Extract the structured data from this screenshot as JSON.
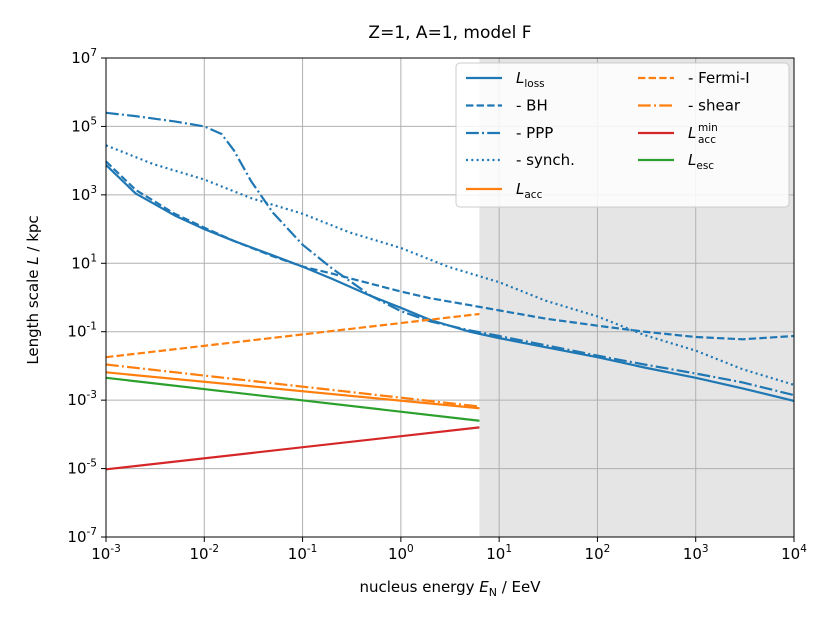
{
  "chart_data": {
    "type": "line",
    "title": "Z=1, A=1, model F",
    "xlabel": {
      "prefix": "nucleus energy ",
      "symbol": "E",
      "sub": "N",
      "suffix": " / EeV"
    },
    "ylabel": {
      "prefix": "Length scale ",
      "symbol": "L",
      "suffix": " / kpc"
    },
    "xscale": "log",
    "yscale": "log",
    "xlim": [
      0.001,
      10000
    ],
    "ylim": [
      1e-07,
      10000000
    ],
    "grid": true,
    "legend_position": "top-right",
    "shaded_region": {
      "x_from": 6.3,
      "x_to": 10000,
      "color": "#e5e5e5"
    },
    "x_ticks": [
      {
        "base": "10",
        "exp": "-3"
      },
      {
        "base": "10",
        "exp": "-2"
      },
      {
        "base": "10",
        "exp": "-1"
      },
      {
        "base": "10",
        "exp": "0"
      },
      {
        "base": "10",
        "exp": "1"
      },
      {
        "base": "10",
        "exp": "2"
      },
      {
        "base": "10",
        "exp": "3"
      },
      {
        "base": "10",
        "exp": "4"
      }
    ],
    "y_ticks": [
      {
        "base": "10",
        "exp": "-7"
      },
      {
        "base": "10",
        "exp": "-5"
      },
      {
        "base": "10",
        "exp": "-3"
      },
      {
        "base": "10",
        "exp": "-1"
      },
      {
        "base": "10",
        "exp": "1"
      },
      {
        "base": "10",
        "exp": "3"
      },
      {
        "base": "10",
        "exp": "5"
      },
      {
        "base": "10",
        "exp": "7"
      }
    ],
    "series": [
      {
        "id": "l-loss",
        "name": "L",
        "sub": "loss",
        "sup": "",
        "color": "#1f77b4",
        "dash": "solid",
        "points": [
          [
            0.001,
            7500
          ],
          [
            0.002,
            1100
          ],
          [
            0.005,
            250
          ],
          [
            0.01,
            100
          ],
          [
            0.02,
            45
          ],
          [
            0.05,
            17
          ],
          [
            0.1,
            8
          ],
          [
            0.2,
            3.5
          ],
          [
            0.5,
            1.1
          ],
          [
            1,
            0.5
          ],
          [
            2,
            0.22
          ],
          [
            5,
            0.1
          ],
          [
            10,
            0.065
          ],
          [
            30,
            0.035
          ],
          [
            100,
            0.018
          ],
          [
            300,
            0.009
          ],
          [
            1000,
            0.0045
          ],
          [
            3000,
            0.0022
          ],
          [
            10000,
            0.00095
          ]
        ]
      },
      {
        "id": "l-bh",
        "name": "  - BH",
        "sub": "",
        "sup": "",
        "color": "#1f77b4",
        "dash": "dashed",
        "points": [
          [
            0.001,
            9500
          ],
          [
            0.002,
            1400
          ],
          [
            0.005,
            280
          ],
          [
            0.01,
            110
          ],
          [
            0.02,
            45
          ],
          [
            0.05,
            16
          ],
          [
            0.1,
            8
          ],
          [
            0.2,
            5
          ],
          [
            0.5,
            2.5
          ],
          [
            1,
            1.5
          ],
          [
            2,
            0.95
          ],
          [
            5,
            0.6
          ],
          [
            10,
            0.42
          ],
          [
            30,
            0.24
          ],
          [
            100,
            0.15
          ],
          [
            300,
            0.1
          ],
          [
            1000,
            0.07
          ],
          [
            3000,
            0.06
          ],
          [
            10000,
            0.075
          ]
        ]
      },
      {
        "id": "l-ppp",
        "name": "  - PPP",
        "sub": "",
        "sup": "",
        "color": "#1f77b4",
        "dash": "dashdot",
        "points": [
          [
            0.001,
            250000
          ],
          [
            0.002,
            200000
          ],
          [
            0.005,
            140000
          ],
          [
            0.01,
            100000
          ],
          [
            0.015,
            60000
          ],
          [
            0.02,
            20000
          ],
          [
            0.03,
            2500
          ],
          [
            0.05,
            300
          ],
          [
            0.1,
            35
          ],
          [
            0.2,
            7
          ],
          [
            0.5,
            1.1
          ],
          [
            1,
            0.4
          ],
          [
            2,
            0.2
          ],
          [
            5,
            0.11
          ],
          [
            10,
            0.075
          ],
          [
            30,
            0.04
          ],
          [
            100,
            0.02
          ],
          [
            300,
            0.011
          ],
          [
            1000,
            0.006
          ],
          [
            3000,
            0.0033
          ],
          [
            10000,
            0.0014
          ]
        ]
      },
      {
        "id": "l-synch",
        "name": "  - synch.",
        "sub": "",
        "sup": "",
        "color": "#1f77b4",
        "dash": "dotted",
        "points": [
          [
            0.001,
            28000
          ],
          [
            0.003,
            8000
          ],
          [
            0.01,
            2800
          ],
          [
            0.03,
            800
          ],
          [
            0.1,
            280
          ],
          [
            0.3,
            80
          ],
          [
            1,
            28
          ],
          [
            3,
            8
          ],
          [
            10,
            2.8
          ],
          [
            30,
            0.8
          ],
          [
            100,
            0.28
          ],
          [
            300,
            0.08
          ],
          [
            1000,
            0.028
          ],
          [
            3000,
            0.008
          ],
          [
            10000,
            0.0028
          ]
        ]
      },
      {
        "id": "l-acc",
        "name": "L",
        "sub": "acc",
        "sup": "",
        "color": "#ff7f0e",
        "dash": "solid",
        "points": [
          [
            0.001,
            0.0065
          ],
          [
            6.3,
            0.00058
          ]
        ]
      },
      {
        "id": "l-fermi",
        "name": "  - Fermi-I",
        "sub": "",
        "sup": "",
        "color": "#ff7f0e",
        "dash": "dashed",
        "points": [
          [
            0.001,
            0.018
          ],
          [
            6.3,
            0.33
          ]
        ]
      },
      {
        "id": "l-shear",
        "name": "  - shear",
        "sub": "",
        "sup": "",
        "color": "#ff7f0e",
        "dash": "dashdot",
        "points": [
          [
            0.001,
            0.011
          ],
          [
            6.3,
            0.00065
          ]
        ]
      },
      {
        "id": "l-acc-min",
        "name": "L",
        "sub": "acc",
        "sup": "min",
        "color": "#d62728",
        "dash": "solid",
        "points": [
          [
            0.001,
            9.5e-06
          ],
          [
            6.3,
            0.00016
          ]
        ]
      },
      {
        "id": "l-esc",
        "name": "L",
        "sub": "esc",
        "sup": "",
        "color": "#2ca02c",
        "dash": "solid",
        "points": [
          [
            0.001,
            0.0045
          ],
          [
            6.3,
            0.00025
          ]
        ]
      }
    ]
  }
}
